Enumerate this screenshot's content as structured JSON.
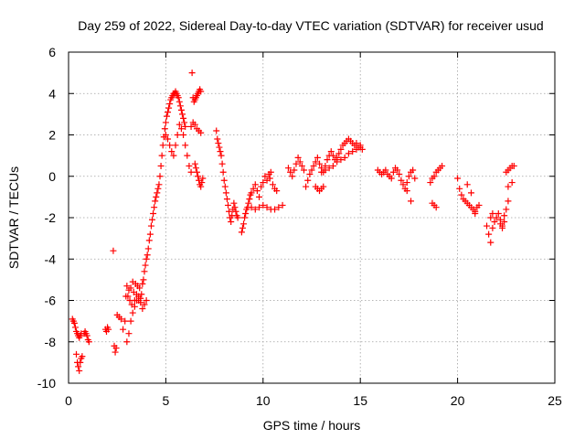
{
  "chart_data": {
    "type": "scatter",
    "title": "Day 259 of 2022, Sidereal Day-to-day VTEC variation (SDTVAR) for receiver usud",
    "xlabel": "GPS time / hours",
    "ylabel": "SDTVAR / TECUs",
    "xlim": [
      0,
      25
    ],
    "ylim": [
      -10,
      6
    ],
    "xticks": [
      0,
      5,
      10,
      15,
      20,
      25
    ],
    "yticks": [
      -10,
      -8,
      -6,
      -4,
      -2,
      0,
      2,
      4,
      6
    ],
    "grid": true,
    "marker": "+",
    "color": "#ff0000",
    "series": [
      {
        "name": "SDTVAR",
        "x": [
          0.2,
          0.25,
          0.3,
          0.35,
          0.4,
          0.45,
          0.5,
          0.55,
          0.6,
          0.65,
          0.4,
          0.45,
          0.5,
          0.55,
          0.6,
          0.65,
          0.7,
          0.8,
          0.85,
          0.9,
          0.95,
          1.0,
          1.05,
          1.9,
          1.95,
          2.0,
          2.05,
          2.3,
          2.35,
          2.4,
          2.45,
          2.5,
          2.6,
          2.7,
          2.8,
          2.9,
          2.95,
          3.0,
          3.05,
          3.1,
          3.15,
          3.2,
          3.25,
          3.3,
          3.35,
          3.4,
          3.45,
          3.5,
          3.55,
          3.6,
          3.65,
          3.7,
          3.75,
          3.8,
          3.85,
          3.9,
          3.95,
          4.0,
          4.05,
          4.1,
          4.15,
          4.2,
          4.25,
          4.3,
          4.35,
          4.4,
          4.45,
          4.5,
          4.55,
          4.6,
          4.65,
          4.7,
          4.75,
          4.8,
          4.85,
          4.9,
          4.95,
          5.0,
          5.05,
          5.1,
          5.15,
          5.2,
          5.25,
          5.3,
          5.35,
          5.4,
          5.45,
          5.5,
          5.55,
          5.6,
          5.65,
          5.7,
          5.75,
          5.8,
          5.85,
          5.9,
          5.95,
          6.0,
          3.0,
          3.1,
          3.2,
          3.3,
          3.4,
          3.5,
          3.6,
          3.7,
          3.8,
          3.9,
          4.0,
          5.0,
          5.1,
          5.2,
          5.3,
          5.4,
          5.5,
          5.6,
          5.7,
          5.8,
          5.9,
          6.0,
          6.1,
          6.2,
          6.3,
          6.35,
          6.4,
          6.45,
          6.5,
          6.55,
          6.6,
          6.65,
          6.7,
          6.75,
          6.8,
          6.5,
          6.55,
          6.6,
          6.65,
          6.7,
          6.75,
          6.8,
          6.85,
          6.9,
          6.3,
          6.4,
          6.5,
          6.6,
          6.7,
          6.8,
          7.6,
          7.65,
          7.7,
          7.75,
          7.8,
          7.85,
          7.9,
          7.95,
          8.0,
          8.05,
          8.1,
          8.15,
          8.2,
          8.25,
          8.3,
          8.35,
          8.4,
          8.45,
          8.5,
          8.55,
          8.6,
          8.65,
          8.7,
          8.9,
          8.95,
          9.0,
          9.05,
          9.1,
          9.15,
          9.2,
          9.25,
          9.3,
          9.35,
          9.4,
          9.5,
          9.6,
          9.7,
          9.8,
          9.9,
          10.0,
          10.1,
          10.2,
          10.3,
          10.35,
          10.4,
          10.5,
          10.6,
          10.7,
          9.4,
          9.6,
          9.8,
          10.0,
          10.2,
          10.4,
          10.6,
          10.8,
          11.0,
          11.3,
          11.4,
          11.5,
          11.6,
          11.7,
          11.8,
          11.9,
          12.0,
          12.1,
          12.2,
          12.3,
          12.4,
          12.5,
          12.6,
          12.7,
          12.8,
          12.9,
          13.0,
          13.1,
          13.2,
          13.3,
          13.4,
          13.5,
          13.6,
          13.7,
          13.8,
          13.9,
          14.0,
          14.1,
          14.2,
          14.3,
          14.4,
          14.5,
          14.6,
          14.7,
          14.8,
          14.9,
          15.0,
          15.1,
          13.0,
          13.2,
          13.4,
          13.6,
          13.8,
          14.0,
          14.2,
          14.4,
          14.6,
          14.8,
          15.0,
          12.7,
          12.8,
          12.9,
          13.0,
          13.1,
          15.9,
          16.0,
          16.1,
          16.2,
          16.3,
          16.4,
          16.5,
          16.6,
          16.7,
          16.8,
          16.9,
          17.0,
          17.1,
          17.2,
          17.3,
          17.4,
          17.5,
          17.6,
          17.7,
          17.8,
          17.4,
          17.6,
          18.6,
          18.7,
          18.8,
          18.9,
          19.0,
          19.1,
          19.2,
          18.7,
          18.8,
          18.9,
          20.0,
          20.1,
          20.2,
          20.3,
          20.4,
          20.5,
          20.6,
          20.7,
          20.8,
          20.9,
          21.0,
          21.1,
          20.5,
          20.7,
          20.9,
          21.5,
          21.6,
          21.7,
          21.8,
          21.9,
          22.0,
          22.1,
          22.2,
          22.3,
          22.4,
          22.5,
          22.6,
          21.7,
          21.8,
          22.2,
          22.3,
          22.4,
          22.5,
          22.6,
          22.7,
          22.8,
          22.9,
          22.6,
          22.8
        ],
        "y": [
          -6.9,
          -7.0,
          -7.1,
          -7.3,
          -7.5,
          -7.6,
          -7.7,
          -7.8,
          -7.7,
          -7.6,
          -8.6,
          -9.0,
          -9.2,
          -9.4,
          -9.0,
          -8.8,
          -8.7,
          -7.6,
          -7.5,
          -7.6,
          -7.7,
          -7.9,
          -8.0,
          -7.4,
          -7.5,
          -7.3,
          -7.4,
          -3.6,
          -8.2,
          -8.5,
          -8.3,
          -6.7,
          -6.8,
          -6.9,
          -7.4,
          -7.0,
          -5.8,
          -5.3,
          -5.8,
          -5.5,
          -6.0,
          -5.4,
          -6.2,
          -5.1,
          -5.6,
          -6.0,
          -5.2,
          -5.7,
          -5.3,
          -6.0,
          -5.4,
          -5.9,
          -5.7,
          -5.2,
          -5.0,
          -4.6,
          -4.3,
          -4.0,
          -3.8,
          -3.5,
          -3.1,
          -2.8,
          -2.4,
          -2.1,
          -1.8,
          -1.5,
          -1.2,
          -1.0,
          -0.8,
          -0.6,
          -0.4,
          0.0,
          0.5,
          1.0,
          1.5,
          1.9,
          2.3,
          2.6,
          2.9,
          3.1,
          3.3,
          3.5,
          3.7,
          3.8,
          3.9,
          4.0,
          4.0,
          4.1,
          4.0,
          3.9,
          3.8,
          3.6,
          3.4,
          3.2,
          3.0,
          2.8,
          2.6,
          2.4,
          -8.0,
          -7.6,
          -7.0,
          -6.6,
          -6.3,
          -6.0,
          -5.8,
          -6.1,
          -6.4,
          -6.2,
          -6.0,
          2.0,
          1.8,
          1.5,
          1.2,
          1.0,
          1.5,
          2.0,
          2.5,
          2.3,
          2.0,
          1.5,
          1.0,
          0.5,
          0.2,
          5.0,
          3.8,
          3.6,
          3.7,
          3.8,
          3.9,
          4.0,
          4.1,
          4.2,
          4.1,
          0.6,
          0.4,
          0.2,
          0.0,
          -0.2,
          -0.4,
          -0.5,
          -0.3,
          -0.1,
          2.4,
          2.6,
          2.5,
          2.3,
          2.2,
          2.1,
          2.2,
          1.8,
          1.6,
          1.4,
          1.2,
          1.0,
          0.6,
          0.2,
          -0.2,
          -0.5,
          -0.8,
          -1.1,
          -1.4,
          -1.7,
          -2.0,
          -2.2,
          -1.9,
          -1.6,
          -1.3,
          -1.5,
          -1.7,
          -1.9,
          -2.0,
          -2.7,
          -2.5,
          -2.3,
          -2.0,
          -1.8,
          -1.6,
          -1.5,
          -1.3,
          -1.1,
          -0.9,
          -0.8,
          -0.6,
          -0.4,
          -0.7,
          -1.0,
          -0.5,
          -0.3,
          0.0,
          -0.2,
          0.1,
          -0.1,
          0.2,
          -0.4,
          -0.6,
          -0.7,
          -1.5,
          -1.6,
          -1.5,
          -1.4,
          -1.5,
          -1.6,
          -1.6,
          -1.5,
          -1.4,
          0.4,
          0.2,
          0.0,
          0.3,
          0.6,
          0.9,
          0.7,
          0.5,
          0.3,
          -0.5,
          -0.2,
          0.1,
          0.3,
          0.5,
          0.7,
          0.9,
          0.6,
          0.4,
          0.2,
          0.5,
          0.8,
          1.0,
          1.2,
          1.0,
          0.8,
          0.9,
          1.1,
          1.3,
          1.5,
          1.6,
          1.7,
          1.8,
          1.7,
          1.6,
          1.5,
          1.6,
          1.4,
          1.5,
          1.3,
          0.2,
          0.3,
          0.4,
          0.5,
          0.7,
          0.8,
          0.9,
          1.1,
          1.2,
          1.3,
          1.4,
          -0.5,
          -0.6,
          -0.7,
          -0.6,
          -0.5,
          0.3,
          0.2,
          0.1,
          0.2,
          0.3,
          0.1,
          0.0,
          -0.1,
          0.2,
          0.4,
          0.3,
          0.1,
          -0.2,
          -0.4,
          -0.6,
          -0.3,
          0.0,
          0.2,
          0.3,
          -0.1,
          -0.7,
          -1.2,
          -0.3,
          -0.1,
          0.0,
          0.2,
          0.3,
          0.4,
          0.5,
          -1.3,
          -1.4,
          -1.5,
          -0.1,
          -0.6,
          -0.9,
          -1.1,
          -1.2,
          -1.3,
          -1.4,
          -1.5,
          -1.6,
          -1.7,
          -1.5,
          -1.4,
          -0.4,
          -0.8,
          -1.8,
          -2.4,
          -2.8,
          -3.2,
          -2.5,
          -2.2,
          -2.0,
          -1.8,
          -2.1,
          -2.4,
          -1.9,
          -1.6,
          -1.2,
          -2.0,
          -1.8,
          -2.3,
          -2.5,
          -2.2,
          0.2,
          0.3,
          0.4,
          0.5,
          0.5,
          -0.5,
          -0.3
        ]
      }
    ]
  }
}
